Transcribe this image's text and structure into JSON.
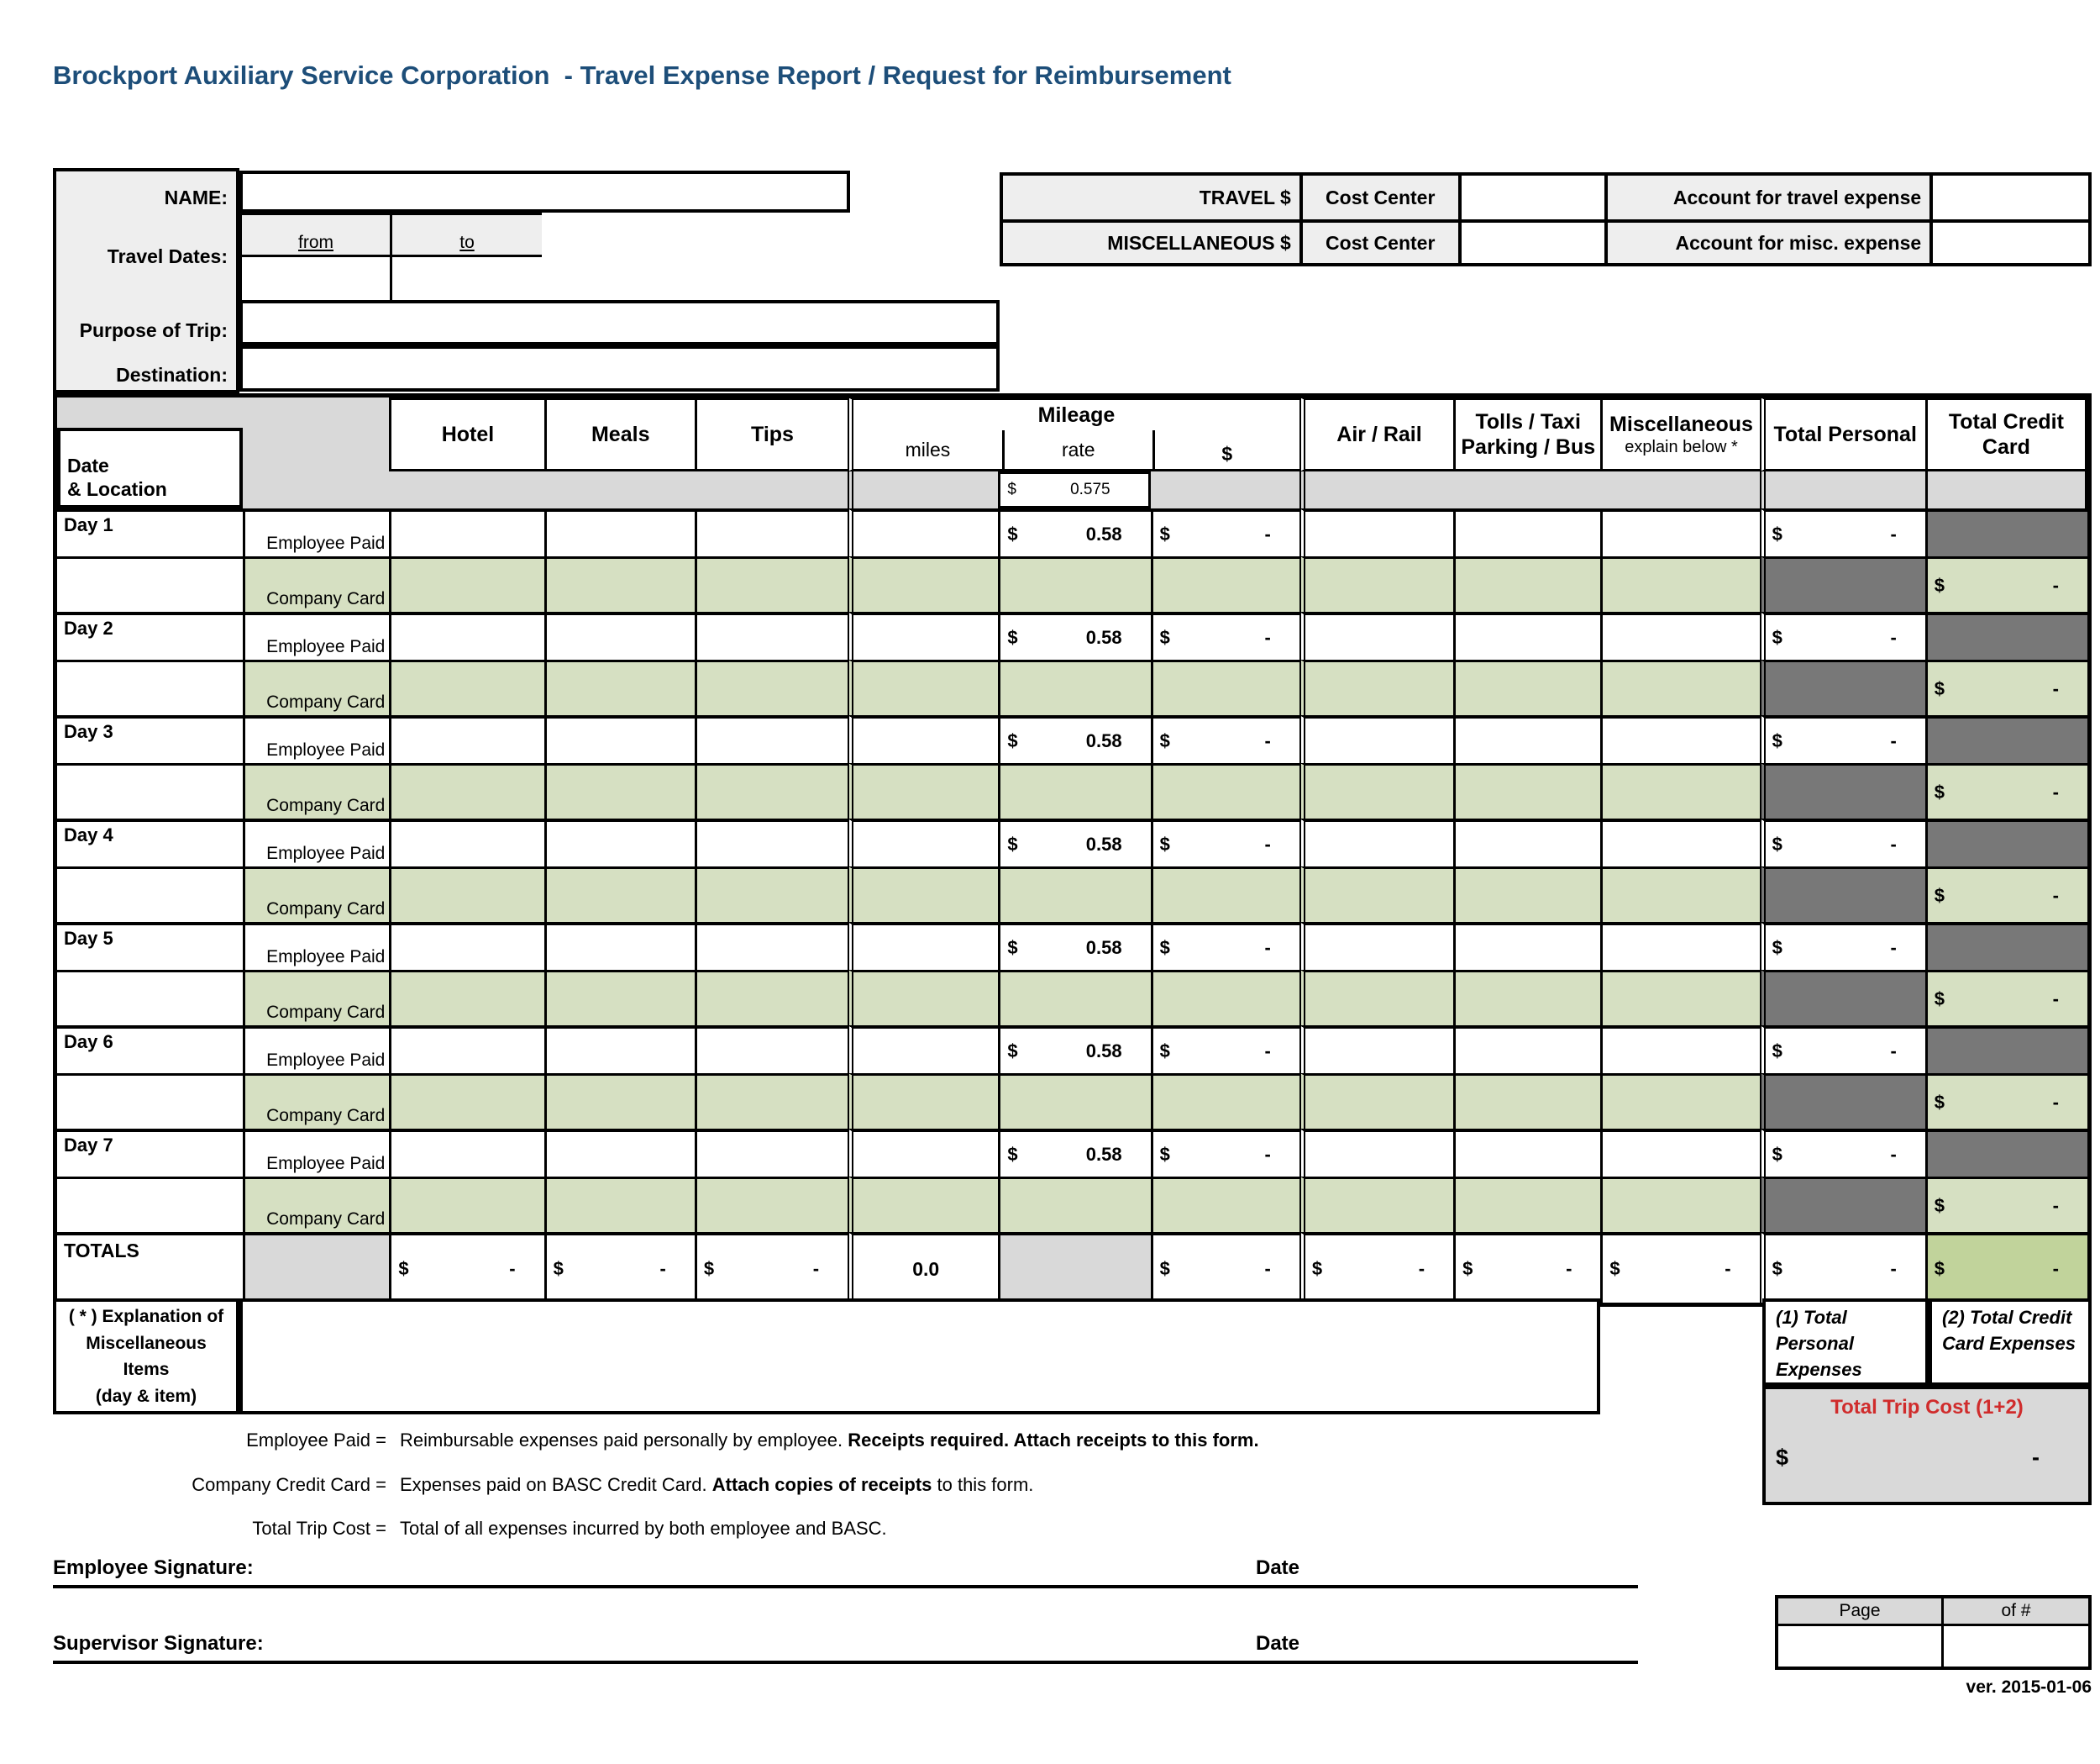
{
  "title": "Brockport Auxiliary Service Corporation  - Travel Expense Report / Request for Reimbursement",
  "info": {
    "name_label": "NAME:",
    "name_value": "",
    "travel_dates_label": "Travel Dates:",
    "from_label": "from",
    "to_label": "to",
    "from_value": "",
    "to_value": "",
    "purpose_label": "Purpose of Trip:",
    "purpose_value": "",
    "destination_label": "Destination:",
    "destination_value": ""
  },
  "accounts": {
    "rows": [
      {
        "type_label": "TRAVEL $",
        "cost_center_label": "Cost Center",
        "cost_center_value": "",
        "account_label": "Account for travel expense",
        "account_value": ""
      },
      {
        "type_label": "MISCELLANEOUS $",
        "cost_center_label": "Cost Center",
        "cost_center_value": "",
        "account_label": "Account for misc. expense",
        "account_value": ""
      }
    ]
  },
  "table": {
    "currency": "$",
    "date_location_line1": "Date",
    "date_location_line2": "& Location",
    "columns": {
      "hotel": "Hotel",
      "meals": "Meals",
      "tips": "Tips",
      "mileage": "Mileage",
      "miles": "miles",
      "rate": "rate",
      "dollar": "$",
      "air_rail": "Air / Rail",
      "tolls_line1": "Tolls / Taxi",
      "tolls_line2": "Parking / Bus",
      "misc_line1": "Miscellaneous",
      "misc_line2": "explain below *",
      "total_personal": "Total Personal",
      "total_credit_line1": "Total Credit",
      "total_credit_line2": "Card"
    },
    "default_rate": "0.575",
    "row_labels": {
      "employee": "Employee Paid",
      "company": "Company Card"
    },
    "days": [
      {
        "label": "Day 1",
        "rate": "0.58",
        "mileage_amount": "-",
        "total_personal": "-",
        "total_credit_card": "-"
      },
      {
        "label": "Day 2",
        "rate": "0.58",
        "mileage_amount": "-",
        "total_personal": "-",
        "total_credit_card": "-"
      },
      {
        "label": "Day 3",
        "rate": "0.58",
        "mileage_amount": "-",
        "total_personal": "-",
        "total_credit_card": "-"
      },
      {
        "label": "Day 4",
        "rate": "0.58",
        "mileage_amount": "-",
        "total_personal": "-",
        "total_credit_card": "-"
      },
      {
        "label": "Day 5",
        "rate": "0.58",
        "mileage_amount": "-",
        "total_personal": "-",
        "total_credit_card": "-"
      },
      {
        "label": "Day 6",
        "rate": "0.58",
        "mileage_amount": "-",
        "total_personal": "-",
        "total_credit_card": "-"
      },
      {
        "label": "Day 7",
        "rate": "0.58",
        "mileage_amount": "-",
        "total_personal": "-",
        "total_credit_card": "-"
      }
    ],
    "totals": {
      "label": "TOTALS",
      "hotel": "-",
      "meals": "-",
      "tips": "-",
      "miles": "0.0",
      "mileage_amount": "-",
      "air_rail": "-",
      "tolls": "-",
      "misc": "-",
      "total_personal": "-",
      "total_credit_card": "-"
    }
  },
  "explanation": {
    "label_lines": [
      "( * ) Explanation of",
      "Miscellaneous",
      "Items",
      "(day & item)"
    ],
    "content": ""
  },
  "summary": {
    "total_personal_lines": [
      "(1) Total",
      "Personal",
      "Expenses"
    ],
    "total_credit_lines": [
      "(2) Total Credit",
      "Card Expenses"
    ],
    "trip_cost_label": "Total Trip Cost (1+2)",
    "trip_cost_currency": "$",
    "trip_cost_value": "-"
  },
  "legend": [
    {
      "term": "Employee Paid =",
      "desc_normal": "Reimbursable expenses paid personally by employee. ",
      "desc_bold": "Receipts required. Attach receipts to this form.",
      "desc_tail": ""
    },
    {
      "term": "Company Credit Card =",
      "desc_normal": "Expenses paid on BASC Credit Card. ",
      "desc_bold": "Attach copies of receipts",
      "desc_tail": " to this form."
    },
    {
      "term": "Total Trip Cost =",
      "desc_normal": "Total of all expenses incurred by both employee and BASC.",
      "desc_bold": "",
      "desc_tail": ""
    }
  ],
  "signatures": [
    {
      "label": "Employee Signature:",
      "date_label": "Date"
    },
    {
      "label": "Supervisor Signature:",
      "date_label": "Date"
    }
  ],
  "page_footer": {
    "page_label": "Page",
    "of_label": "of #",
    "page_value": "",
    "of_value": "",
    "version": "ver. 2015-01-06"
  }
}
